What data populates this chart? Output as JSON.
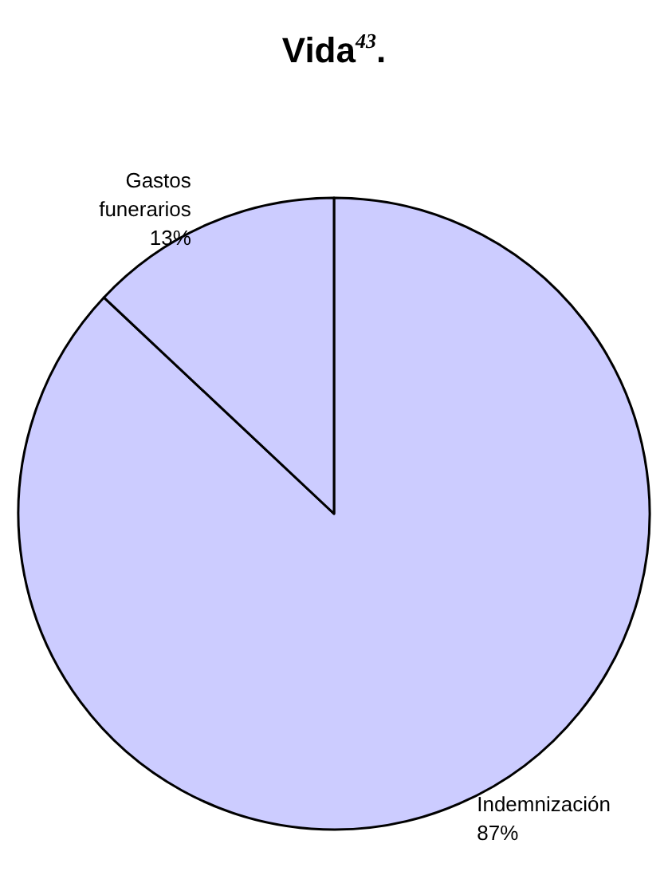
{
  "chart_data": {
    "type": "pie",
    "title": "Vida$^{43}$.",
    "categories": [
      "Indemnización",
      "Gastos funerarios"
    ],
    "values": [
      87,
      13
    ],
    "value_labels": [
      "87%",
      "13%"
    ],
    "colors": [
      "#ccccff",
      "#ccccff"
    ],
    "legend": false
  }
}
